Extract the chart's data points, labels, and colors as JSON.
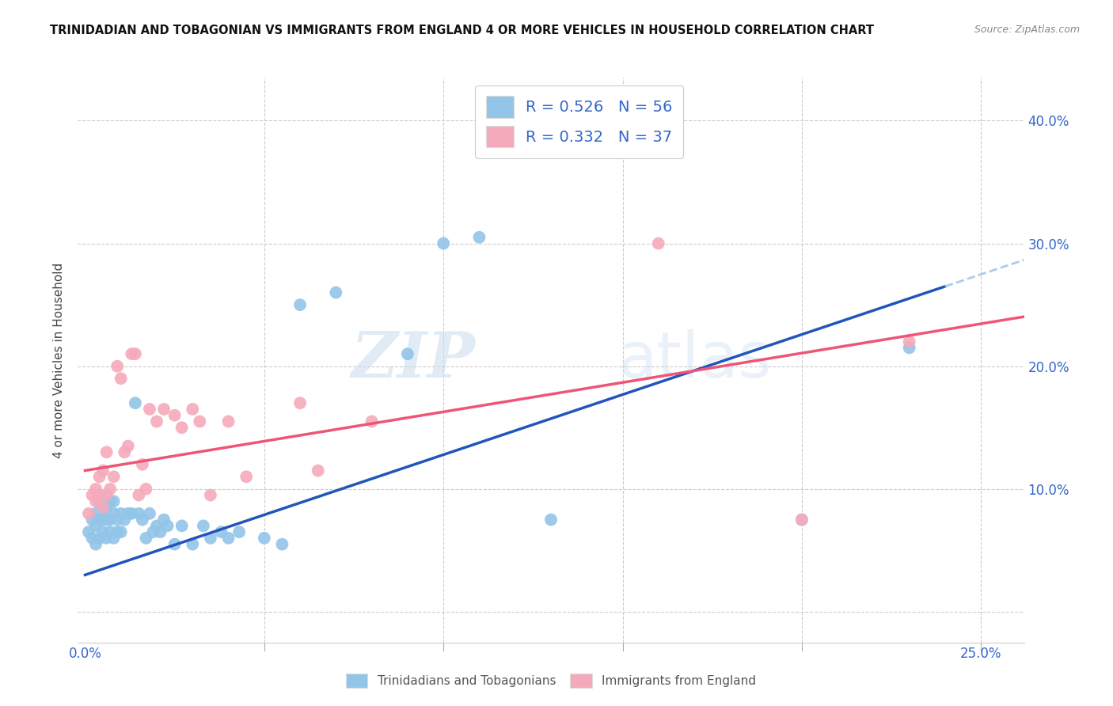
{
  "title": "TRINIDADIAN AND TOBAGONIAN VS IMMIGRANTS FROM ENGLAND 4 OR MORE VEHICLES IN HOUSEHOLD CORRELATION CHART",
  "source": "Source: ZipAtlas.com",
  "ylabel_left": "4 or more Vehicles in Household",
  "yticks": [
    0.0,
    0.1,
    0.2,
    0.3,
    0.4
  ],
  "ytick_labels": [
    "",
    "10.0%",
    "20.0%",
    "30.0%",
    "40.0%"
  ],
  "xticks": [
    0.0,
    0.05,
    0.1,
    0.15,
    0.2,
    0.25
  ],
  "xlim": [
    -0.002,
    0.262
  ],
  "ylim": [
    -0.025,
    0.435
  ],
  "blue_color": "#92C5E8",
  "pink_color": "#F5AABB",
  "blue_line_color": "#2255BB",
  "pink_line_color": "#EE5577",
  "blue_dash_color": "#AACCEE",
  "watermark_zip": "ZIP",
  "watermark_atlas": "atlas",
  "legend_blue_label": "R = 0.526   N = 56",
  "legend_pink_label": "R = 0.332   N = 37",
  "bottom_legend_blue": "Trinidadians and Tobagonians",
  "bottom_legend_pink": "Immigrants from England",
  "blue_scatter_x": [
    0.001,
    0.002,
    0.002,
    0.003,
    0.003,
    0.003,
    0.004,
    0.004,
    0.004,
    0.005,
    0.005,
    0.005,
    0.006,
    0.006,
    0.006,
    0.007,
    0.007,
    0.007,
    0.008,
    0.008,
    0.008,
    0.009,
    0.009,
    0.01,
    0.01,
    0.011,
    0.012,
    0.013,
    0.014,
    0.015,
    0.016,
    0.017,
    0.018,
    0.019,
    0.02,
    0.021,
    0.022,
    0.023,
    0.025,
    0.027,
    0.03,
    0.033,
    0.035,
    0.038,
    0.04,
    0.043,
    0.05,
    0.055,
    0.06,
    0.07,
    0.09,
    0.1,
    0.11,
    0.13,
    0.2,
    0.23
  ],
  "blue_scatter_y": [
    0.065,
    0.075,
    0.06,
    0.07,
    0.055,
    0.08,
    0.06,
    0.075,
    0.09,
    0.065,
    0.075,
    0.085,
    0.06,
    0.075,
    0.085,
    0.065,
    0.075,
    0.09,
    0.06,
    0.08,
    0.09,
    0.065,
    0.075,
    0.065,
    0.08,
    0.075,
    0.08,
    0.08,
    0.17,
    0.08,
    0.075,
    0.06,
    0.08,
    0.065,
    0.07,
    0.065,
    0.075,
    0.07,
    0.055,
    0.07,
    0.055,
    0.07,
    0.06,
    0.065,
    0.06,
    0.065,
    0.06,
    0.055,
    0.25,
    0.26,
    0.21,
    0.3,
    0.305,
    0.075,
    0.075,
    0.215
  ],
  "pink_scatter_x": [
    0.001,
    0.002,
    0.003,
    0.003,
    0.004,
    0.004,
    0.005,
    0.005,
    0.006,
    0.006,
    0.007,
    0.008,
    0.009,
    0.01,
    0.011,
    0.012,
    0.013,
    0.014,
    0.015,
    0.016,
    0.017,
    0.018,
    0.02,
    0.022,
    0.025,
    0.027,
    0.03,
    0.032,
    0.035,
    0.04,
    0.045,
    0.06,
    0.065,
    0.08,
    0.16,
    0.2,
    0.23
  ],
  "pink_scatter_y": [
    0.08,
    0.095,
    0.1,
    0.09,
    0.11,
    0.095,
    0.085,
    0.115,
    0.095,
    0.13,
    0.1,
    0.11,
    0.2,
    0.19,
    0.13,
    0.135,
    0.21,
    0.21,
    0.095,
    0.12,
    0.1,
    0.165,
    0.155,
    0.165,
    0.16,
    0.15,
    0.165,
    0.155,
    0.095,
    0.155,
    0.11,
    0.17,
    0.115,
    0.155,
    0.3,
    0.075,
    0.22
  ],
  "blue_line_x0": 0.0,
  "blue_line_y0": 0.03,
  "blue_line_x1": 0.24,
  "blue_line_y1": 0.265,
  "pink_line_x0": 0.0,
  "pink_line_y0": 0.115,
  "pink_line_x1": 0.23,
  "pink_line_y1": 0.225
}
